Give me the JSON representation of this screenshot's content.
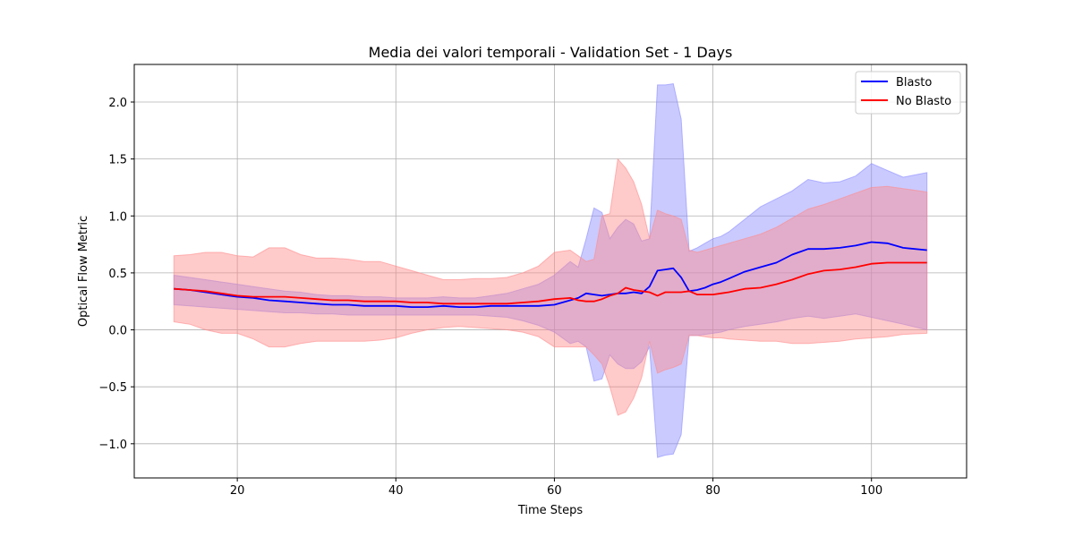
{
  "chart_data": {
    "type": "line",
    "title": "Media dei valori temporali - Validation Set - 1 Days",
    "xlabel": "Time Steps",
    "ylabel": "Optical Flow Metric",
    "xlim": [
      7,
      112
    ],
    "ylim": [
      -1.3,
      2.33
    ],
    "xticks": [
      20,
      40,
      60,
      80,
      100
    ],
    "yticks": [
      -1.0,
      -0.5,
      0.0,
      0.5,
      1.0,
      1.5,
      2.0
    ],
    "xtick_labels": [
      "20",
      "40",
      "60",
      "80",
      "100"
    ],
    "ytick_labels": [
      "−1.0",
      "−0.5",
      "0.0",
      "0.5",
      "1.0",
      "1.5",
      "2.0"
    ],
    "grid": true,
    "legend_position": "top-right",
    "x": [
      12,
      14,
      16,
      18,
      20,
      22,
      24,
      26,
      28,
      30,
      32,
      34,
      36,
      38,
      40,
      42,
      44,
      46,
      48,
      50,
      52,
      54,
      56,
      58,
      60,
      62,
      63,
      64,
      65,
      66,
      67,
      68,
      69,
      70,
      71,
      72,
      73,
      74,
      75,
      76,
      77,
      78,
      79,
      80,
      81,
      82,
      84,
      86,
      88,
      90,
      92,
      94,
      96,
      98,
      100,
      102,
      104,
      107
    ],
    "series": [
      {
        "name": "Blasto",
        "color": "#0000ff",
        "band_color": "#8a8aff",
        "mean": [
          0.36,
          0.35,
          0.33,
          0.31,
          0.29,
          0.28,
          0.26,
          0.25,
          0.24,
          0.23,
          0.22,
          0.22,
          0.21,
          0.21,
          0.21,
          0.2,
          0.2,
          0.21,
          0.2,
          0.2,
          0.21,
          0.21,
          0.21,
          0.21,
          0.22,
          0.26,
          0.28,
          0.32,
          0.31,
          0.3,
          0.31,
          0.32,
          0.32,
          0.33,
          0.32,
          0.38,
          0.52,
          0.53,
          0.54,
          0.46,
          0.34,
          0.35,
          0.37,
          0.4,
          0.42,
          0.45,
          0.51,
          0.55,
          0.59,
          0.66,
          0.71,
          0.71,
          0.72,
          0.74,
          0.77,
          0.76,
          0.72,
          0.7
        ],
        "upper": [
          0.48,
          0.46,
          0.44,
          0.42,
          0.4,
          0.38,
          0.36,
          0.34,
          0.33,
          0.31,
          0.3,
          0.3,
          0.29,
          0.29,
          0.28,
          0.28,
          0.28,
          0.29,
          0.28,
          0.28,
          0.3,
          0.32,
          0.36,
          0.4,
          0.48,
          0.6,
          0.55,
          0.8,
          1.07,
          1.03,
          0.8,
          0.9,
          0.97,
          0.93,
          0.78,
          0.8,
          2.15,
          2.15,
          2.16,
          1.85,
          0.69,
          0.72,
          0.76,
          0.8,
          0.82,
          0.86,
          0.97,
          1.08,
          1.15,
          1.22,
          1.32,
          1.29,
          1.3,
          1.35,
          1.46,
          1.4,
          1.34,
          1.38
        ],
        "lower": [
          0.22,
          0.21,
          0.2,
          0.19,
          0.18,
          0.17,
          0.16,
          0.15,
          0.15,
          0.14,
          0.14,
          0.13,
          0.13,
          0.13,
          0.13,
          0.13,
          0.13,
          0.13,
          0.13,
          0.13,
          0.12,
          0.11,
          0.08,
          0.04,
          -0.02,
          -0.12,
          -0.1,
          -0.15,
          -0.45,
          -0.43,
          -0.22,
          -0.3,
          -0.34,
          -0.34,
          -0.28,
          -0.15,
          -1.12,
          -1.1,
          -1.09,
          -0.92,
          -0.05,
          -0.05,
          -0.04,
          -0.03,
          -0.02,
          0.0,
          0.03,
          0.05,
          0.07,
          0.1,
          0.12,
          0.1,
          0.12,
          0.14,
          0.11,
          0.08,
          0.05,
          0.0
        ]
      },
      {
        "name": "No Blasto",
        "color": "#ff0000",
        "band_color": "#ff8a8a",
        "mean": [
          0.36,
          0.35,
          0.34,
          0.32,
          0.3,
          0.29,
          0.29,
          0.29,
          0.28,
          0.27,
          0.26,
          0.26,
          0.25,
          0.25,
          0.25,
          0.24,
          0.24,
          0.23,
          0.23,
          0.23,
          0.23,
          0.23,
          0.24,
          0.25,
          0.27,
          0.28,
          0.26,
          0.25,
          0.25,
          0.27,
          0.3,
          0.32,
          0.37,
          0.35,
          0.34,
          0.33,
          0.3,
          0.33,
          0.33,
          0.33,
          0.34,
          0.31,
          0.31,
          0.31,
          0.32,
          0.33,
          0.36,
          0.37,
          0.4,
          0.44,
          0.49,
          0.52,
          0.53,
          0.55,
          0.58,
          0.59,
          0.59,
          0.59
        ],
        "upper": [
          0.65,
          0.66,
          0.68,
          0.68,
          0.65,
          0.64,
          0.72,
          0.72,
          0.66,
          0.63,
          0.63,
          0.62,
          0.6,
          0.6,
          0.56,
          0.52,
          0.48,
          0.44,
          0.44,
          0.45,
          0.45,
          0.46,
          0.5,
          0.56,
          0.68,
          0.7,
          0.65,
          0.6,
          0.62,
          1.0,
          1.02,
          1.5,
          1.42,
          1.3,
          1.1,
          0.8,
          1.05,
          1.02,
          1.0,
          0.97,
          0.7,
          0.68,
          0.7,
          0.72,
          0.74,
          0.76,
          0.8,
          0.84,
          0.9,
          0.98,
          1.06,
          1.1,
          1.15,
          1.2,
          1.25,
          1.26,
          1.24,
          1.21
        ],
        "lower": [
          0.07,
          0.05,
          0.0,
          -0.03,
          -0.03,
          -0.08,
          -0.15,
          -0.15,
          -0.12,
          -0.1,
          -0.1,
          -0.1,
          -0.1,
          -0.09,
          -0.07,
          -0.03,
          0.0,
          0.02,
          0.03,
          0.02,
          0.01,
          0.0,
          -0.02,
          -0.06,
          -0.15,
          -0.15,
          -0.15,
          -0.15,
          -0.22,
          -0.3,
          -0.5,
          -0.75,
          -0.72,
          -0.6,
          -0.42,
          -0.1,
          -0.38,
          -0.35,
          -0.33,
          -0.3,
          -0.05,
          -0.05,
          -0.06,
          -0.07,
          -0.07,
          -0.08,
          -0.09,
          -0.1,
          -0.1,
          -0.12,
          -0.12,
          -0.11,
          -0.1,
          -0.08,
          -0.07,
          -0.06,
          -0.04,
          -0.03
        ]
      }
    ]
  }
}
